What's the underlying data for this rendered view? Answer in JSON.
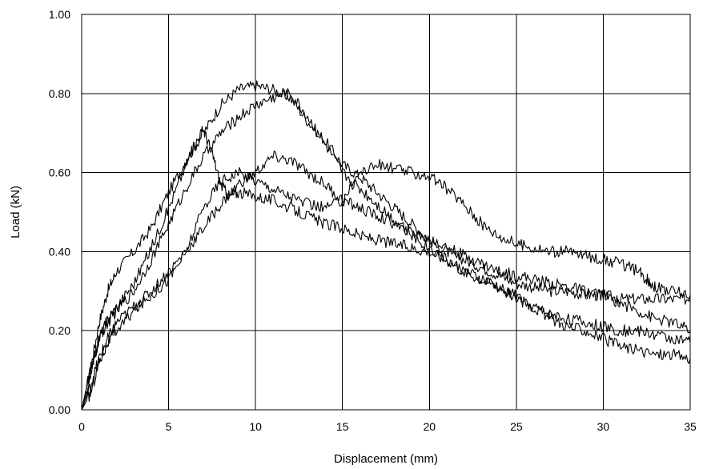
{
  "chart_data": {
    "type": "line",
    "title": "",
    "xlabel": "Displacement (mm)",
    "ylabel": "Load (kN)",
    "xlim": [
      0,
      35
    ],
    "ylim": [
      0,
      1.0
    ],
    "x_ticks": [
      0,
      5,
      10,
      15,
      20,
      25,
      30,
      35
    ],
    "y_ticks": [
      0,
      0.2,
      0.4,
      0.6,
      0.8,
      1.0
    ],
    "x_tick_labels": [
      "0",
      "5",
      "10",
      "15",
      "20",
      "25",
      "30",
      "35"
    ],
    "y_tick_labels": [
      "0.00",
      "0.20",
      "0.40",
      "0.60",
      "0.80",
      "1.00"
    ],
    "grid": true,
    "legend": "none",
    "line_color": "#000000",
    "series": [
      {
        "points": [
          [
            0,
            0
          ],
          [
            0.5,
            0.1
          ],
          [
            1,
            0.22
          ],
          [
            1.5,
            0.3
          ],
          [
            2,
            0.35
          ],
          [
            3,
            0.4
          ],
          [
            4,
            0.46
          ],
          [
            5,
            0.55
          ],
          [
            6,
            0.63
          ],
          [
            7,
            0.7
          ],
          [
            8,
            0.77
          ],
          [
            9,
            0.81
          ],
          [
            10,
            0.82
          ],
          [
            11,
            0.81
          ],
          [
            12,
            0.79
          ],
          [
            13,
            0.73
          ],
          [
            14,
            0.68
          ],
          [
            15,
            0.62
          ],
          [
            16,
            0.59
          ],
          [
            17,
            0.55
          ],
          [
            18,
            0.51
          ],
          [
            19,
            0.47
          ],
          [
            20,
            0.43
          ],
          [
            21,
            0.4
          ],
          [
            22,
            0.38
          ],
          [
            23,
            0.36
          ],
          [
            24,
            0.34
          ],
          [
            25,
            0.32
          ],
          [
            26,
            0.31
          ],
          [
            27,
            0.3
          ],
          [
            28,
            0.3
          ],
          [
            29,
            0.29
          ],
          [
            30,
            0.29
          ],
          [
            31,
            0.28
          ],
          [
            32,
            0.28
          ],
          [
            33,
            0.28
          ],
          [
            34,
            0.28
          ],
          [
            35,
            0.28
          ]
        ]
      },
      {
        "points": [
          [
            0,
            0
          ],
          [
            0.5,
            0.08
          ],
          [
            1,
            0.18
          ],
          [
            1.5,
            0.22
          ],
          [
            2,
            0.25
          ],
          [
            3,
            0.3
          ],
          [
            4,
            0.38
          ],
          [
            5,
            0.47
          ],
          [
            6,
            0.56
          ],
          [
            7,
            0.64
          ],
          [
            8,
            0.7
          ],
          [
            9,
            0.74
          ],
          [
            10,
            0.77
          ],
          [
            11,
            0.79
          ],
          [
            12,
            0.8
          ],
          [
            13,
            0.74
          ],
          [
            14,
            0.67
          ],
          [
            15,
            0.6
          ],
          [
            16,
            0.56
          ],
          [
            17,
            0.52
          ],
          [
            18,
            0.48
          ],
          [
            19,
            0.44
          ],
          [
            20,
            0.41
          ],
          [
            21,
            0.38
          ],
          [
            22,
            0.35
          ],
          [
            23,
            0.33
          ],
          [
            24,
            0.31
          ],
          [
            25,
            0.28
          ],
          [
            26,
            0.26
          ],
          [
            27,
            0.24
          ],
          [
            28,
            0.23
          ],
          [
            29,
            0.22
          ],
          [
            30,
            0.21
          ],
          [
            31,
            0.2
          ],
          [
            32,
            0.2
          ],
          [
            33,
            0.19
          ],
          [
            34,
            0.18
          ],
          [
            35,
            0.17
          ]
        ]
      },
      {
        "points": [
          [
            0,
            0
          ],
          [
            0.5,
            0.1
          ],
          [
            1,
            0.18
          ],
          [
            1.5,
            0.23
          ],
          [
            2,
            0.26
          ],
          [
            3,
            0.32
          ],
          [
            4,
            0.41
          ],
          [
            5,
            0.51
          ],
          [
            6,
            0.62
          ],
          [
            6.5,
            0.67
          ],
          [
            7,
            0.71
          ],
          [
            7.5,
            0.65
          ],
          [
            8,
            0.57
          ],
          [
            8.5,
            0.54
          ],
          [
            9,
            0.55
          ],
          [
            10,
            0.54
          ],
          [
            11,
            0.53
          ],
          [
            12,
            0.51
          ],
          [
            13,
            0.49
          ],
          [
            14,
            0.47
          ],
          [
            15,
            0.46
          ],
          [
            16,
            0.44
          ],
          [
            17,
            0.43
          ],
          [
            18,
            0.42
          ],
          [
            19,
            0.41
          ],
          [
            20,
            0.4
          ],
          [
            21,
            0.38
          ],
          [
            22,
            0.35
          ],
          [
            23,
            0.33
          ],
          [
            24,
            0.31
          ],
          [
            25,
            0.29
          ],
          [
            26,
            0.26
          ],
          [
            27,
            0.23
          ],
          [
            28,
            0.21
          ],
          [
            29,
            0.2
          ],
          [
            30,
            0.18
          ],
          [
            31,
            0.16
          ],
          [
            32,
            0.15
          ],
          [
            33,
            0.14
          ],
          [
            34,
            0.14
          ],
          [
            35,
            0.13
          ]
        ]
      },
      {
        "points": [
          [
            0,
            0
          ],
          [
            0.5,
            0.06
          ],
          [
            1,
            0.13
          ],
          [
            1.5,
            0.18
          ],
          [
            2,
            0.22
          ],
          [
            3,
            0.26
          ],
          [
            4,
            0.3
          ],
          [
            5,
            0.35
          ],
          [
            6,
            0.4
          ],
          [
            7,
            0.46
          ],
          [
            8,
            0.52
          ],
          [
            9,
            0.57
          ],
          [
            10,
            0.6
          ],
          [
            11,
            0.64
          ],
          [
            12,
            0.63
          ],
          [
            13,
            0.6
          ],
          [
            14,
            0.57
          ],
          [
            15,
            0.53
          ],
          [
            16,
            0.51
          ],
          [
            17,
            0.49
          ],
          [
            18,
            0.47
          ],
          [
            19,
            0.45
          ],
          [
            20,
            0.43
          ],
          [
            21,
            0.41
          ],
          [
            22,
            0.39
          ],
          [
            23,
            0.37
          ],
          [
            24,
            0.35
          ],
          [
            25,
            0.34
          ],
          [
            26,
            0.33
          ],
          [
            27,
            0.32
          ],
          [
            28,
            0.31
          ],
          [
            29,
            0.3
          ],
          [
            30,
            0.29
          ],
          [
            31,
            0.27
          ],
          [
            32,
            0.25
          ],
          [
            33,
            0.23
          ],
          [
            34,
            0.22
          ],
          [
            35,
            0.2
          ]
        ]
      },
      {
        "points": [
          [
            0,
            0
          ],
          [
            0.5,
            0.04
          ],
          [
            1,
            0.12
          ],
          [
            1.5,
            0.17
          ],
          [
            2,
            0.2
          ],
          [
            3,
            0.25
          ],
          [
            4,
            0.29
          ],
          [
            5,
            0.33
          ],
          [
            6,
            0.4
          ],
          [
            7,
            0.51
          ],
          [
            8,
            0.58
          ],
          [
            9,
            0.6
          ],
          [
            10,
            0.58
          ],
          [
            11,
            0.56
          ],
          [
            12,
            0.54
          ],
          [
            13,
            0.52
          ],
          [
            14,
            0.51
          ],
          [
            15,
            0.53
          ],
          [
            16,
            0.6
          ],
          [
            17,
            0.62
          ],
          [
            18,
            0.61
          ],
          [
            19,
            0.6
          ],
          [
            20,
            0.59
          ],
          [
            21,
            0.56
          ],
          [
            22,
            0.52
          ],
          [
            23,
            0.47
          ],
          [
            24,
            0.44
          ],
          [
            25,
            0.42
          ],
          [
            26,
            0.41
          ],
          [
            27,
            0.4
          ],
          [
            28,
            0.4
          ],
          [
            29,
            0.39
          ],
          [
            30,
            0.38
          ],
          [
            31,
            0.37
          ],
          [
            32,
            0.35
          ],
          [
            32.5,
            0.33
          ],
          [
            33,
            0.31
          ],
          [
            34,
            0.3
          ],
          [
            35,
            0.29
          ]
        ]
      }
    ]
  }
}
